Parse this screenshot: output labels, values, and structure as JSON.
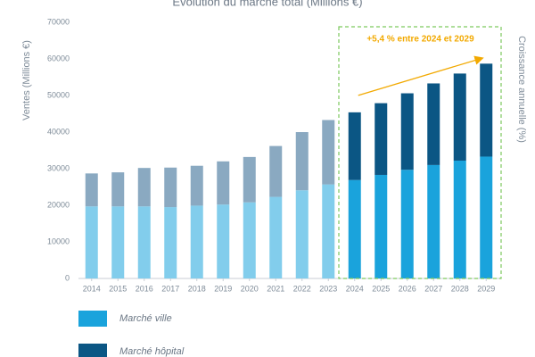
{
  "chart_data": {
    "type": "stacked_bar",
    "title": "Évolution du marché total (Millions €)",
    "y_label": "Ventes (Millions €)",
    "y2_label": "Croissance annuelle (%)",
    "categories": [
      "2014",
      "2015",
      "2016",
      "2017",
      "2018",
      "2019",
      "2020",
      "2021",
      "2022",
      "2023",
      "2024",
      "2025",
      "2026",
      "2027",
      "2028",
      "2029"
    ],
    "series": [
      {
        "name": "Marché ville",
        "color": "#1aa3dc",
        "light_color": "#82cdec",
        "values": [
          19700,
          19700,
          19700,
          19500,
          19900,
          20200,
          20800,
          22300,
          24100,
          25700,
          26900,
          28300,
          29700,
          31000,
          32200,
          33300
        ]
      },
      {
        "name": "Marché hôpital",
        "color": "#0b5684",
        "light_color": "#8aa9c1",
        "values": [
          9000,
          9300,
          10500,
          10800,
          10900,
          11800,
          12400,
          13900,
          15900,
          17600,
          18500,
          19600,
          20900,
          22300,
          23800,
          25400
        ]
      }
    ],
    "ylim": [
      0,
      70000
    ],
    "yticks": [
      0,
      10000,
      20000,
      30000,
      40000,
      50000,
      60000,
      70000
    ],
    "annotation": {
      "text": "+5,4 % entre 2024 et 2029",
      "from": "2024",
      "to": "2029"
    }
  }
}
